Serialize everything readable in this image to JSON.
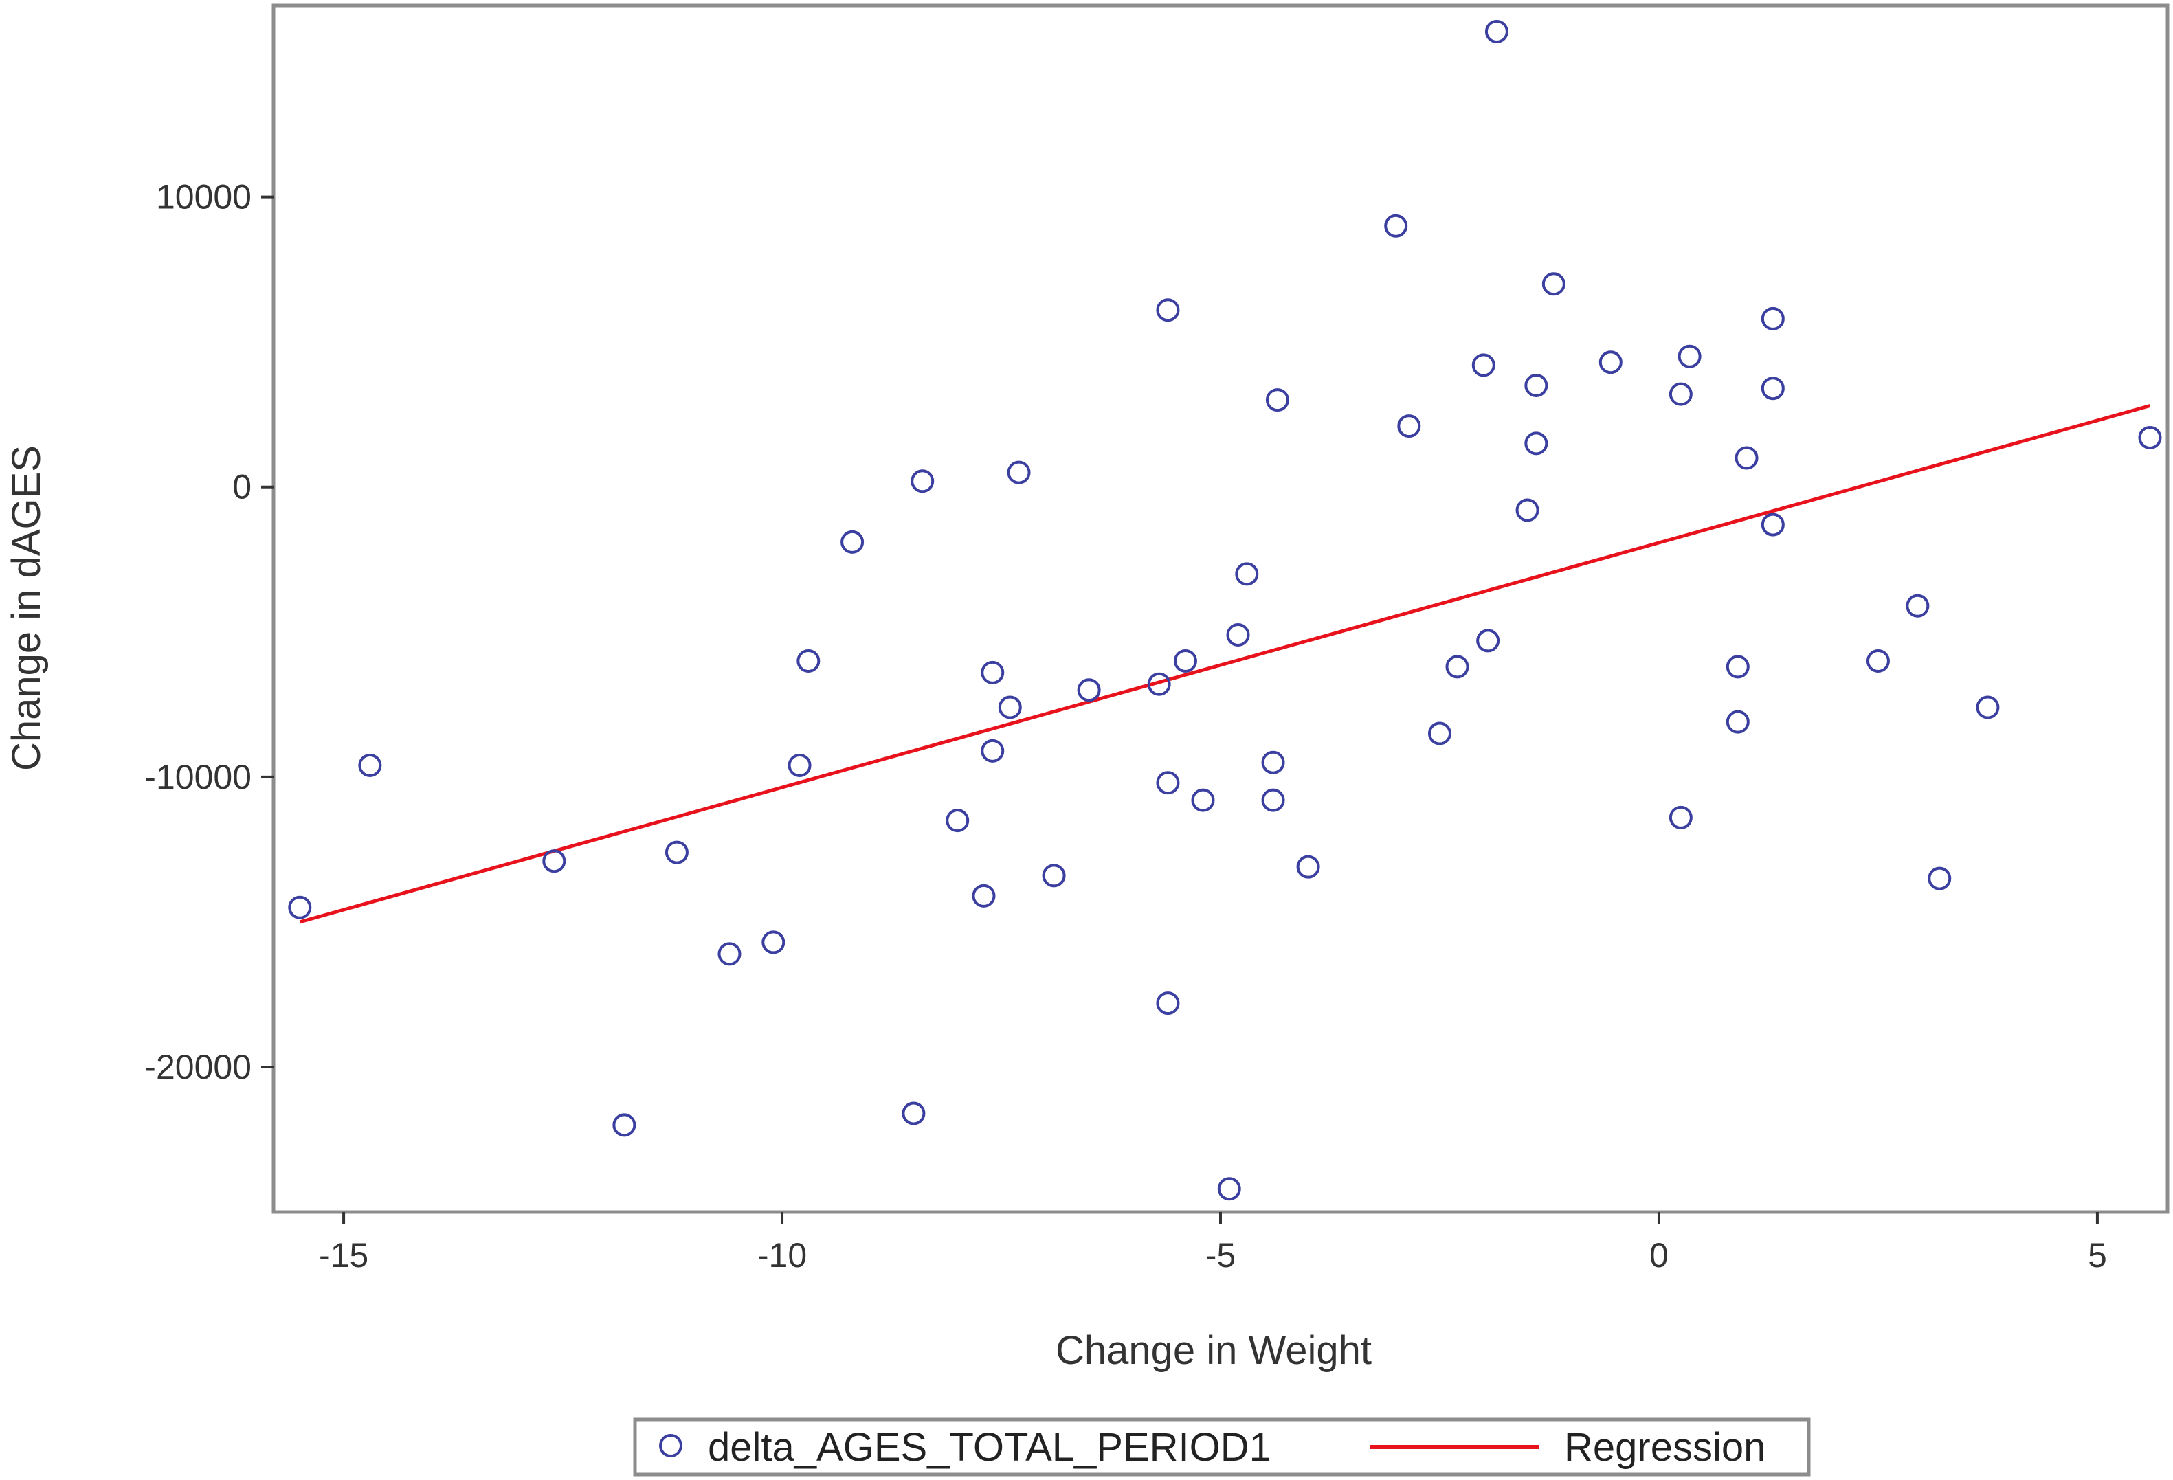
{
  "chart_data": {
    "type": "scatter",
    "xlabel": "Change in Weight",
    "ylabel": "Change in dAGES",
    "xlim": [
      -15.8,
      5.8
    ],
    "ylim": [
      -25000,
      16600
    ],
    "xticks": [
      -15,
      -10,
      -5,
      0,
      5
    ],
    "yticks": [
      -20000,
      -10000,
      0,
      10000
    ],
    "xtick_labels": [
      "-15",
      "-10",
      "-5",
      "0",
      "5"
    ],
    "ytick_labels": [
      "-20000",
      "-10000",
      "0",
      "10000"
    ],
    "grid": false,
    "legend_position": "bottom",
    "series": [
      {
        "name": "delta_AGES_TOTAL_PERIOD1",
        "type": "scatter",
        "marker": "circle-open",
        "color": "#3a3fa0",
        "points": [
          {
            "x": -15.5,
            "y": -14500
          },
          {
            "x": -14.7,
            "y": -9600
          },
          {
            "x": -12.6,
            "y": -12900
          },
          {
            "x": -11.8,
            "y": -22000
          },
          {
            "x": -11.2,
            "y": -12600
          },
          {
            "x": -10.6,
            "y": -16100
          },
          {
            "x": -10.1,
            "y": -15700
          },
          {
            "x": -9.8,
            "y": -9600
          },
          {
            "x": -9.7,
            "y": -6000
          },
          {
            "x": -9.2,
            "y": -1900
          },
          {
            "x": -8.5,
            "y": -21600
          },
          {
            "x": -8.4,
            "y": 200
          },
          {
            "x": -8.0,
            "y": -11500
          },
          {
            "x": -7.7,
            "y": -14100
          },
          {
            "x": -7.6,
            "y": -6400
          },
          {
            "x": -7.6,
            "y": -9100
          },
          {
            "x": -7.4,
            "y": -7600
          },
          {
            "x": -7.3,
            "y": 500
          },
          {
            "x": -6.9,
            "y": -13400
          },
          {
            "x": -6.5,
            "y": -7000
          },
          {
            "x": -5.7,
            "y": -6800
          },
          {
            "x": -5.6,
            "y": 6100
          },
          {
            "x": -5.6,
            "y": -10200
          },
          {
            "x": -5.6,
            "y": -17800
          },
          {
            "x": -5.4,
            "y": -6000
          },
          {
            "x": -5.2,
            "y": -10800
          },
          {
            "x": -4.9,
            "y": -24200
          },
          {
            "x": -4.8,
            "y": -5100
          },
          {
            "x": -4.7,
            "y": -3000
          },
          {
            "x": -4.4,
            "y": -9500
          },
          {
            "x": -4.4,
            "y": -10800
          },
          {
            "x": -4.35,
            "y": 3000
          },
          {
            "x": -4.0,
            "y": -13100
          },
          {
            "x": -3.0,
            "y": 9000
          },
          {
            "x": -2.85,
            "y": 2100
          },
          {
            "x": -2.5,
            "y": -8500
          },
          {
            "x": -2.3,
            "y": -6200
          },
          {
            "x": -2.0,
            "y": 4200
          },
          {
            "x": -1.95,
            "y": -5300
          },
          {
            "x": -1.85,
            "y": 15700
          },
          {
            "x": -1.5,
            "y": -800
          },
          {
            "x": -1.4,
            "y": 3500
          },
          {
            "x": -1.4,
            "y": 1500
          },
          {
            "x": -1.2,
            "y": 7000
          },
          {
            "x": -0.55,
            "y": 4300
          },
          {
            "x": 0.25,
            "y": 3200
          },
          {
            "x": 0.25,
            "y": -11400
          },
          {
            "x": 0.35,
            "y": 4500
          },
          {
            "x": 0.9,
            "y": -6200
          },
          {
            "x": 0.9,
            "y": -8100
          },
          {
            "x": 1.0,
            "y": 1000
          },
          {
            "x": 1.3,
            "y": 5800
          },
          {
            "x": 1.3,
            "y": 3400
          },
          {
            "x": 1.3,
            "y": -1300
          },
          {
            "x": 2.5,
            "y": -6000
          },
          {
            "x": 2.95,
            "y": -4100
          },
          {
            "x": 3.2,
            "y": -13500
          },
          {
            "x": 3.75,
            "y": -7600
          },
          {
            "x": 5.6,
            "y": 1700
          }
        ]
      },
      {
        "name": "Regression",
        "type": "line",
        "color": "#e8121c",
        "points": [
          {
            "x": -15.5,
            "y": -15000
          },
          {
            "x": 5.6,
            "y": 2800
          }
        ]
      }
    ]
  }
}
